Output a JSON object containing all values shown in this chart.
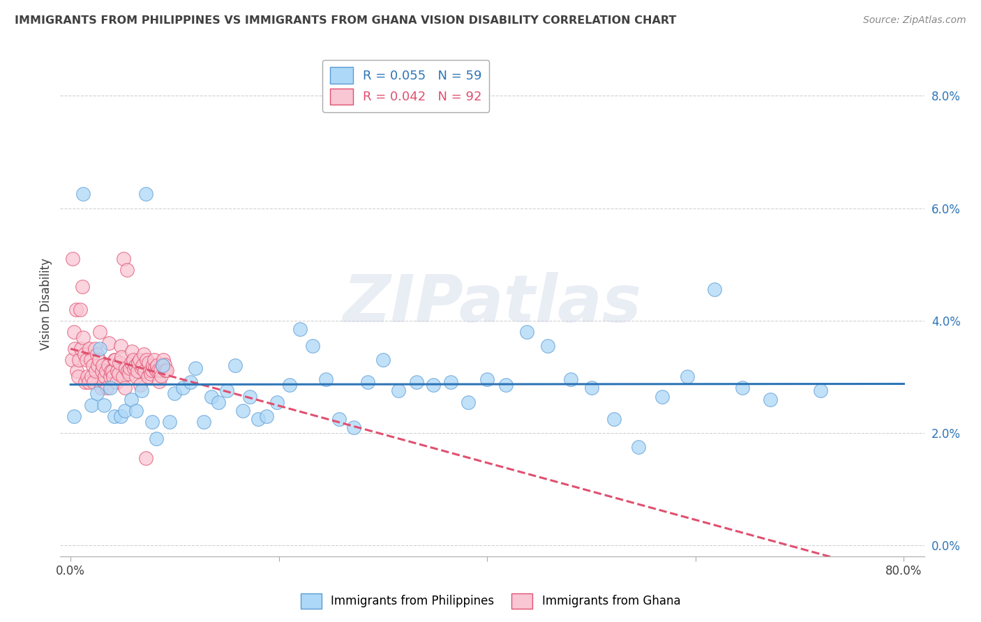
{
  "title": "IMMIGRANTS FROM PHILIPPINES VS IMMIGRANTS FROM GHANA VISION DISABILITY CORRELATION CHART",
  "source": "Source: ZipAtlas.com",
  "ylabel": "Vision Disability",
  "y_ticks": [
    0.0,
    0.02,
    0.04,
    0.06,
    0.08
  ],
  "y_tick_labels": [
    "0.0%",
    "2.0%",
    "4.0%",
    "6.0%",
    "8.0%"
  ],
  "x_lim": [
    -0.01,
    0.82
  ],
  "y_lim": [
    -0.002,
    0.088
  ],
  "watermark": "ZIPatlas",
  "background_color": "#ffffff",
  "grid_color": "#cccccc",
  "title_color": "#404040",
  "series": [
    {
      "name": "Immigrants from Philippines",
      "color": "#add8f7",
      "edge_color": "#5b9bd5",
      "line_color": "#2e75b6",
      "line_style": "solid",
      "R": 0.055,
      "N": 59,
      "x": [
        0.003,
        0.012,
        0.02,
        0.025,
        0.028,
        0.032,
        0.038,
        0.042,
        0.048,
        0.052,
        0.058,
        0.063,
        0.068,
        0.072,
        0.078,
        0.082,
        0.088,
        0.095,
        0.1,
        0.108,
        0.115,
        0.12,
        0.128,
        0.135,
        0.142,
        0.15,
        0.158,
        0.165,
        0.172,
        0.18,
        0.188,
        0.198,
        0.21,
        0.22,
        0.232,
        0.245,
        0.258,
        0.272,
        0.285,
        0.3,
        0.315,
        0.332,
        0.348,
        0.365,
        0.382,
        0.4,
        0.418,
        0.438,
        0.458,
        0.48,
        0.5,
        0.522,
        0.545,
        0.568,
        0.592,
        0.618,
        0.645,
        0.672,
        0.72
      ],
      "y": [
        0.023,
        0.0625,
        0.025,
        0.027,
        0.035,
        0.025,
        0.028,
        0.023,
        0.023,
        0.024,
        0.026,
        0.024,
        0.0275,
        0.0625,
        0.022,
        0.019,
        0.032,
        0.022,
        0.027,
        0.028,
        0.029,
        0.0315,
        0.022,
        0.0265,
        0.0255,
        0.0275,
        0.032,
        0.024,
        0.0265,
        0.0225,
        0.023,
        0.0255,
        0.0285,
        0.0385,
        0.0355,
        0.0295,
        0.0225,
        0.021,
        0.029,
        0.033,
        0.0275,
        0.029,
        0.0285,
        0.029,
        0.0255,
        0.0295,
        0.0285,
        0.038,
        0.0355,
        0.0295,
        0.028,
        0.0225,
        0.0175,
        0.0265,
        0.03,
        0.0455,
        0.028,
        0.026,
        0.0275
      ]
    },
    {
      "name": "Immigrants from Ghana",
      "color": "#f9c6d3",
      "edge_color": "#e05070",
      "line_color": "#e05070",
      "line_style": "dashed",
      "R": 0.042,
      "N": 92,
      "x": [
        0.001,
        0.002,
        0.003,
        0.004,
        0.005,
        0.006,
        0.007,
        0.008,
        0.009,
        0.01,
        0.011,
        0.012,
        0.013,
        0.014,
        0.015,
        0.016,
        0.017,
        0.018,
        0.019,
        0.02,
        0.021,
        0.022,
        0.023,
        0.024,
        0.025,
        0.026,
        0.027,
        0.028,
        0.029,
        0.03,
        0.031,
        0.032,
        0.033,
        0.034,
        0.035,
        0.036,
        0.037,
        0.038,
        0.039,
        0.04,
        0.041,
        0.042,
        0.043,
        0.044,
        0.045,
        0.046,
        0.047,
        0.048,
        0.049,
        0.05,
        0.051,
        0.052,
        0.053,
        0.054,
        0.055,
        0.056,
        0.057,
        0.058,
        0.059,
        0.06,
        0.061,
        0.062,
        0.063,
        0.064,
        0.065,
        0.066,
        0.067,
        0.068,
        0.069,
        0.07,
        0.071,
        0.072,
        0.073,
        0.074,
        0.075,
        0.076,
        0.077,
        0.078,
        0.079,
        0.08,
        0.081,
        0.082,
        0.083,
        0.084,
        0.085,
        0.086,
        0.087,
        0.088,
        0.089,
        0.09,
        0.091,
        0.092
      ],
      "y": [
        0.033,
        0.051,
        0.038,
        0.035,
        0.042,
        0.031,
        0.03,
        0.033,
        0.042,
        0.035,
        0.046,
        0.037,
        0.034,
        0.029,
        0.033,
        0.03,
        0.029,
        0.035,
        0.033,
        0.03,
        0.032,
        0.029,
        0.035,
        0.031,
        0.034,
        0.032,
        0.033,
        0.038,
        0.028,
        0.031,
        0.032,
        0.029,
        0.03,
        0.031,
        0.028,
        0.032,
        0.036,
        0.03,
        0.031,
        0.031,
        0.03,
        0.033,
        0.033,
        0.029,
        0.031,
        0.0305,
        0.0325,
        0.0355,
        0.0335,
        0.03,
        0.051,
        0.028,
        0.0315,
        0.049,
        0.031,
        0.0305,
        0.0315,
        0.0325,
        0.0345,
        0.033,
        0.0315,
        0.032,
        0.03,
        0.031,
        0.0325,
        0.033,
        0.0285,
        0.0315,
        0.032,
        0.034,
        0.031,
        0.0155,
        0.033,
        0.03,
        0.0325,
        0.031,
        0.0305,
        0.0312,
        0.032,
        0.033,
        0.0315,
        0.0312,
        0.032,
        0.0312,
        0.0292,
        0.0312,
        0.0302,
        0.032,
        0.033,
        0.0322,
        0.0312,
        0.0312
      ]
    }
  ]
}
